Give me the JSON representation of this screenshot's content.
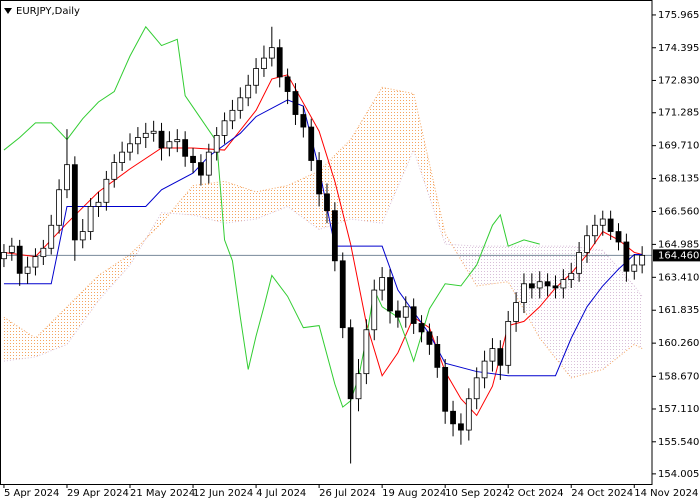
{
  "chart_data": {
    "type": "candlestick",
    "title": "EURJPY,Daily",
    "xlim": [
      -1,
      164.5
    ],
    "xticks": [
      {
        "value": 0,
        "label": "5 Apr 2024"
      },
      {
        "value": 16,
        "label": "29 Apr 2024"
      },
      {
        "value": 32,
        "label": "21 May 2024"
      },
      {
        "value": 48,
        "label": "12 Jun 2024"
      },
      {
        "value": 64,
        "label": "4 Jul 2024"
      },
      {
        "value": 80,
        "label": "26 Jul 2024"
      },
      {
        "value": 96,
        "label": "19 Aug 2024"
      },
      {
        "value": 112,
        "label": "10 Sep 2024"
      },
      {
        "value": 128,
        "label": "2 Oct 2024"
      },
      {
        "value": 144,
        "label": "24 Oct 2024"
      },
      {
        "value": 160,
        "label": "14 Nov 2024"
      }
    ],
    "ylim": [
      153.52,
      176.68
    ],
    "yticks": [
      175.965,
      174.395,
      {
        "value": 172.83,
        "label": "172.830"
      },
      171.285,
      {
        "value": 169.71,
        "label": "169.710"
      },
      168.135,
      {
        "value": 166.56,
        "label": "166.560"
      },
      164.985,
      {
        "value": 163.41,
        "label": "163.410"
      },
      161.835,
      {
        "value": 160.26,
        "label": "160.260"
      },
      {
        "value": 158.67,
        "label": "158.670"
      },
      {
        "value": 157.11,
        "label": "157.110"
      },
      {
        "value": 155.54,
        "label": "155.540"
      },
      154.005
    ],
    "last_price": {
      "value": 164.46,
      "label": "164.460"
    },
    "price_line_color": "#778899",
    "candles": {
      "up_color": "#ffffff",
      "down_color": "#000000",
      "x": [
        0,
        2,
        4,
        6,
        8,
        10,
        12,
        14,
        16,
        18,
        20,
        22,
        24,
        26,
        28,
        30,
        32,
        34,
        36,
        38,
        40,
        42,
        44,
        46,
        48,
        50,
        52,
        54,
        56,
        58,
        60,
        62,
        64,
        66,
        68,
        70,
        72,
        74,
        76,
        78,
        80,
        82,
        84,
        86,
        88,
        90,
        92,
        94,
        96,
        98,
        100,
        102,
        104,
        106,
        108,
        110,
        112,
        114,
        116,
        118,
        120,
        122,
        124,
        126,
        128,
        130,
        132,
        134,
        136,
        138,
        140,
        142,
        144,
        146,
        148,
        150,
        152,
        154,
        156,
        158,
        160,
        162
      ],
      "open": [
        164.3,
        164.6,
        164.9,
        163.6,
        163.9,
        164.4,
        164.8,
        165.9,
        167.6,
        168.8,
        165.2,
        165.6,
        166.8,
        167.0,
        168.1,
        168.9,
        169.4,
        169.8,
        170.1,
        170.3,
        170.4,
        169.6,
        169.9,
        170.0,
        169.2,
        168.9,
        168.3,
        169.4,
        170.2,
        170.9,
        171.4,
        172.0,
        172.6,
        173.4,
        173.9,
        174.4,
        173.0,
        172.3,
        171.2,
        170.6,
        169.0,
        167.4,
        166.6,
        164.2,
        161.0,
        157.6,
        158.8,
        160.9,
        162.8,
        163.4,
        161.8,
        161.5,
        162.0,
        161.2,
        160.8,
        160.2,
        159.1,
        157.0,
        156.4,
        156.1,
        157.6,
        158.6,
        159.4,
        160.0,
        159.2,
        161.3,
        162.2,
        163.1,
        162.9,
        163.2,
        163.0,
        162.9,
        163.3,
        163.6,
        164.6,
        165.4,
        165.9,
        166.2,
        165.6,
        165.1,
        163.7,
        164.0
      ],
      "high": [
        165.0,
        165.3,
        165.2,
        164.4,
        164.8,
        165.2,
        166.4,
        168.1,
        170.5,
        169.2,
        166.2,
        167.2,
        167.5,
        168.5,
        169.3,
        169.9,
        170.3,
        170.6,
        170.8,
        170.9,
        170.8,
        170.4,
        170.5,
        170.4,
        169.6,
        169.3,
        169.8,
        170.6,
        171.3,
        171.9,
        172.5,
        173.1,
        173.9,
        174.5,
        175.4,
        174.8,
        173.4,
        172.7,
        171.6,
        171.0,
        169.4,
        167.9,
        167.0,
        164.6,
        161.4,
        159.5,
        161.4,
        163.3,
        163.9,
        163.8,
        162.3,
        162.5,
        162.4,
        161.6,
        161.2,
        160.6,
        159.5,
        157.5,
        156.9,
        158.1,
        159.1,
        159.9,
        160.5,
        160.4,
        161.8,
        162.7,
        163.6,
        163.6,
        163.7,
        163.6,
        163.5,
        163.8,
        164.1,
        165.1,
        165.9,
        166.4,
        166.6,
        166.6,
        166.0,
        165.5,
        164.5,
        164.9
      ],
      "low": [
        163.9,
        164.2,
        163.0,
        163.1,
        163.5,
        164.0,
        164.5,
        165.5,
        167.2,
        164.2,
        164.8,
        165.2,
        166.3,
        166.6,
        167.7,
        168.5,
        169.0,
        169.3,
        169.6,
        169.9,
        169.0,
        169.2,
        169.4,
        168.7,
        168.4,
        167.8,
        167.9,
        169.0,
        169.8,
        170.5,
        171.0,
        171.6,
        172.2,
        173.0,
        173.5,
        172.5,
        171.7,
        170.7,
        170.1,
        168.5,
        166.8,
        166.0,
        163.7,
        160.5,
        154.5,
        157.0,
        158.3,
        160.4,
        162.3,
        161.2,
        161.0,
        161.0,
        160.7,
        160.3,
        159.7,
        158.6,
        156.4,
        155.8,
        155.4,
        155.6,
        157.1,
        158.1,
        158.9,
        158.5,
        158.8,
        160.8,
        161.7,
        162.4,
        162.4,
        162.5,
        162.4,
        162.4,
        162.9,
        163.2,
        164.1,
        165.0,
        165.4,
        165.2,
        164.7,
        163.2,
        163.3,
        163.6
      ],
      "close": [
        164.6,
        164.9,
        163.6,
        163.9,
        164.4,
        164.8,
        165.9,
        167.6,
        168.8,
        165.2,
        165.6,
        166.8,
        167.0,
        168.1,
        168.9,
        169.4,
        169.8,
        170.1,
        170.3,
        170.4,
        169.6,
        169.9,
        170.0,
        169.2,
        168.9,
        168.3,
        169.4,
        170.2,
        170.9,
        171.4,
        172.0,
        172.6,
        173.4,
        173.9,
        174.4,
        173.0,
        172.3,
        171.2,
        170.6,
        169.0,
        167.4,
        166.6,
        164.2,
        161.0,
        157.6,
        158.8,
        160.9,
        162.8,
        163.4,
        161.8,
        161.5,
        162.0,
        161.2,
        160.8,
        160.2,
        159.1,
        157.0,
        156.4,
        156.1,
        157.6,
        158.6,
        159.4,
        160.0,
        159.2,
        161.3,
        162.2,
        163.1,
        162.9,
        163.2,
        163.0,
        162.9,
        163.3,
        163.6,
        164.6,
        165.4,
        165.9,
        166.2,
        165.6,
        165.1,
        163.7,
        164.0,
        164.46
      ]
    },
    "cloud": {
      "up_color": "#f4a460",
      "down_color": "#d8bfd8",
      "x": [
        0,
        8,
        16,
        24,
        32,
        40,
        48,
        56,
        64,
        72,
        80,
        88,
        96,
        104,
        112,
        120,
        128,
        136,
        144,
        152,
        160,
        162
      ],
      "span_a": [
        161.5,
        160.5,
        162.0,
        163.5,
        164.5,
        166.0,
        167.8,
        168.0,
        167.5,
        167.8,
        168.5,
        170.0,
        172.5,
        172.2,
        165.5,
        163.0,
        163.2,
        160.5,
        158.6,
        159.0,
        160.2,
        160.0
      ],
      "span_b": [
        159.4,
        159.6,
        160.2,
        162.3,
        164.0,
        166.5,
        166.4,
        166.0,
        166.2,
        166.8,
        165.7,
        166.2,
        166.0,
        169.5,
        165.0,
        164.9,
        164.9,
        164.9,
        164.9,
        164.7,
        163.0,
        162.5
      ]
    },
    "lines": [
      {
        "color": "#ff0000",
        "x": [
          0,
          8,
          16,
          24,
          32,
          40,
          48,
          56,
          64,
          68,
          72,
          80,
          84,
          88,
          92,
          96,
          100,
          104,
          108,
          112,
          116,
          120,
          124,
          128,
          132,
          136,
          140,
          144,
          148,
          152,
          156,
          160,
          162
        ],
        "values": [
          164.6,
          164.4,
          166.0,
          167.5,
          168.6,
          169.6,
          169.6,
          169.5,
          171.4,
          172.9,
          173.1,
          170.4,
          168.0,
          165.0,
          161.2,
          158.7,
          159.8,
          161.5,
          161.0,
          158.9,
          157.6,
          156.8,
          158.2,
          161.1,
          161.3,
          162.0,
          162.9,
          163.6,
          164.5,
          165.6,
          165.2,
          164.6,
          164.5
        ]
      },
      {
        "color": "#0000cd",
        "x": [
          0,
          12,
          16,
          36,
          40,
          48,
          52,
          60,
          64,
          72,
          76,
          80,
          84,
          96,
          100,
          108,
          112,
          120,
          128,
          136,
          140,
          144,
          148,
          152,
          156,
          160,
          162
        ],
        "values": [
          163.1,
          163.1,
          166.8,
          166.8,
          167.6,
          168.4,
          169.2,
          170.3,
          171.1,
          171.9,
          171.6,
          168.6,
          164.9,
          164.9,
          162.8,
          160.7,
          159.3,
          158.9,
          158.7,
          158.7,
          158.7,
          160.5,
          162.0,
          163.0,
          163.8,
          164.5,
          164.5
        ]
      },
      {
        "color": "#32cd32",
        "x": [
          0,
          4,
          8,
          12,
          16,
          20,
          24,
          28,
          32,
          36,
          40,
          44,
          46,
          50,
          54,
          56,
          58,
          60,
          62,
          64,
          66,
          68,
          72,
          76,
          80,
          84,
          86,
          88,
          90,
          92,
          94,
          96,
          100,
          102,
          104,
          108,
          112,
          116,
          120,
          124,
          126,
          128,
          132,
          136
        ],
        "values": [
          169.5,
          170.1,
          170.8,
          170.8,
          170.0,
          171.0,
          171.8,
          172.3,
          174.0,
          175.4,
          174.5,
          174.8,
          172.1,
          171.0,
          169.9,
          165.2,
          164.2,
          161.5,
          159.0,
          160.6,
          162.0,
          163.5,
          162.5,
          161.0,
          161.1,
          158.3,
          157.2,
          157.5,
          158.6,
          160.5,
          162.8,
          162.0,
          161.5,
          160.5,
          159.4,
          161.9,
          163.1,
          163.0,
          164.0,
          165.9,
          166.4,
          164.9,
          165.2,
          165.0
        ]
      }
    ]
  }
}
